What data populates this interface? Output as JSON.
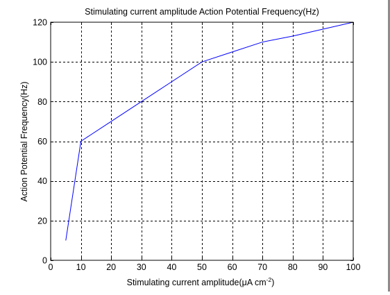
{
  "chart_data": {
    "type": "line",
    "title": "Stimulating current amplitude Action Potential Frequency(Hz)",
    "xlabel": "Stimulating current amplitude(μA cm",
    "xlabel_superscript": "-2",
    "xlabel_suffix": ")",
    "ylabel": "Action Potential Frequency(Hz)",
    "xlim": [
      0,
      100
    ],
    "ylim": [
      0,
      120
    ],
    "xticks": [
      0,
      10,
      20,
      30,
      40,
      50,
      60,
      70,
      80,
      90,
      100
    ],
    "yticks": [
      0,
      20,
      40,
      60,
      80,
      100,
      120
    ],
    "grid": true,
    "grid_style": "dashed",
    "series": [
      {
        "color": "#0000ff",
        "x": [
          5,
          10,
          20,
          30,
          40,
          50,
          60,
          70,
          80,
          90,
          100
        ],
        "y": [
          10,
          60,
          70,
          80,
          90,
          100,
          105,
          110,
          113,
          116.5,
          120
        ]
      }
    ]
  }
}
